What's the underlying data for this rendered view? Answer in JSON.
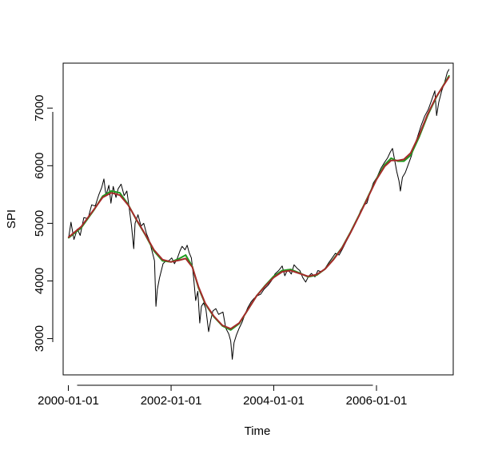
{
  "chart_data": {
    "type": "line",
    "title": "",
    "xlabel": "Time",
    "ylabel": "SPI",
    "xlim": [
      "1999-11-25",
      "2007-07-01"
    ],
    "ylim": [
      2370,
      7780
    ],
    "grid": false,
    "legend": "none",
    "x_ticks": [
      {
        "value": "2000-01-01",
        "label": "2000-01-01"
      },
      {
        "value": "2002-01-01",
        "label": "2002-01-01"
      },
      {
        "value": "2004-01-01",
        "label": "2004-01-01"
      },
      {
        "value": "2006-01-01",
        "label": "2006-01-01"
      }
    ],
    "y_ticks": [
      {
        "value": 3000,
        "label": "3000"
      },
      {
        "value": 4000,
        "label": "4000"
      },
      {
        "value": 5000,
        "label": "5000"
      },
      {
        "value": 6000,
        "label": "6000"
      },
      {
        "value": 7000,
        "label": "7000"
      }
    ],
    "series": [
      {
        "color": "#000000",
        "style": "raw",
        "points": [
          [
            "2000-01-03",
            4750
          ],
          [
            "2000-01-20",
            5020
          ],
          [
            "2000-02-10",
            4720
          ],
          [
            "2000-03-05",
            4900
          ],
          [
            "2000-03-25",
            4790
          ],
          [
            "2000-04-20",
            5100
          ],
          [
            "2000-05-20",
            5080
          ],
          [
            "2000-06-15",
            5320
          ],
          [
            "2000-07-10",
            5300
          ],
          [
            "2000-08-05",
            5500
          ],
          [
            "2000-08-25",
            5620
          ],
          [
            "2000-09-10",
            5770
          ],
          [
            "2000-09-25",
            5480
          ],
          [
            "2000-10-15",
            5660
          ],
          [
            "2000-10-30",
            5350
          ],
          [
            "2000-11-15",
            5640
          ],
          [
            "2000-12-05",
            5450
          ],
          [
            "2000-12-20",
            5600
          ],
          [
            "2001-01-10",
            5680
          ],
          [
            "2001-02-01",
            5480
          ],
          [
            "2001-02-20",
            5560
          ],
          [
            "2001-03-10",
            5250
          ],
          [
            "2001-03-25",
            4960
          ],
          [
            "2001-04-10",
            4560
          ],
          [
            "2001-04-20",
            5000
          ],
          [
            "2001-05-10",
            5150
          ],
          [
            "2001-06-01",
            4950
          ],
          [
            "2001-06-20",
            5000
          ],
          [
            "2001-07-10",
            4820
          ],
          [
            "2001-07-30",
            4700
          ],
          [
            "2001-08-15",
            4550
          ],
          [
            "2001-09-05",
            4350
          ],
          [
            "2001-09-15",
            3560
          ],
          [
            "2001-09-25",
            3850
          ],
          [
            "2001-10-10",
            4050
          ],
          [
            "2001-11-05",
            4300
          ],
          [
            "2001-11-25",
            4350
          ],
          [
            "2001-12-15",
            4350
          ],
          [
            "2002-01-05",
            4400
          ],
          [
            "2002-01-25",
            4300
          ],
          [
            "2002-02-15",
            4400
          ],
          [
            "2002-03-05",
            4520
          ],
          [
            "2002-03-20",
            4600
          ],
          [
            "2002-04-10",
            4540
          ],
          [
            "2002-04-25",
            4620
          ],
          [
            "2002-05-10",
            4490
          ],
          [
            "2002-05-25",
            4400
          ],
          [
            "2002-06-10",
            4060
          ],
          [
            "2002-06-25",
            3660
          ],
          [
            "2002-07-10",
            3820
          ],
          [
            "2002-07-24",
            3270
          ],
          [
            "2002-08-05",
            3560
          ],
          [
            "2002-08-20",
            3620
          ],
          [
            "2002-09-05",
            3520
          ],
          [
            "2002-09-25",
            3120
          ],
          [
            "2002-10-10",
            3320
          ],
          [
            "2002-10-25",
            3480
          ],
          [
            "2002-11-15",
            3520
          ],
          [
            "2002-12-05",
            3420
          ],
          [
            "2003-01-05",
            3460
          ],
          [
            "2003-01-25",
            3180
          ],
          [
            "2003-02-15",
            3080
          ],
          [
            "2003-03-01",
            2960
          ],
          [
            "2003-03-12",
            2640
          ],
          [
            "2003-03-25",
            2930
          ],
          [
            "2003-04-10",
            3060
          ],
          [
            "2003-04-30",
            3180
          ],
          [
            "2003-05-20",
            3280
          ],
          [
            "2003-06-10",
            3420
          ],
          [
            "2003-07-01",
            3540
          ],
          [
            "2003-07-25",
            3640
          ],
          [
            "2003-08-15",
            3700
          ],
          [
            "2003-09-05",
            3740
          ],
          [
            "2003-09-30",
            3770
          ],
          [
            "2003-10-25",
            3860
          ],
          [
            "2003-11-20",
            3920
          ],
          [
            "2003-12-15",
            4000
          ],
          [
            "2004-01-10",
            4120
          ],
          [
            "2004-02-05",
            4180
          ],
          [
            "2004-03-01",
            4260
          ],
          [
            "2004-03-20",
            4090
          ],
          [
            "2004-04-10",
            4200
          ],
          [
            "2004-05-05",
            4120
          ],
          [
            "2004-05-25",
            4280
          ],
          [
            "2004-06-15",
            4220
          ],
          [
            "2004-07-05",
            4180
          ],
          [
            "2004-07-25",
            4060
          ],
          [
            "2004-08-15",
            3980
          ],
          [
            "2004-09-05",
            4080
          ],
          [
            "2004-09-25",
            4130
          ],
          [
            "2004-10-20",
            4070
          ],
          [
            "2004-11-10",
            4180
          ],
          [
            "2004-12-05",
            4160
          ],
          [
            "2005-01-01",
            4220
          ],
          [
            "2005-01-25",
            4310
          ],
          [
            "2005-02-20",
            4400
          ],
          [
            "2005-03-15",
            4480
          ],
          [
            "2005-04-10",
            4450
          ],
          [
            "2005-05-05",
            4560
          ],
          [
            "2005-06-01",
            4690
          ],
          [
            "2005-06-25",
            4800
          ],
          [
            "2005-07-20",
            4920
          ],
          [
            "2005-08-15",
            5050
          ],
          [
            "2005-09-10",
            5220
          ],
          [
            "2005-10-05",
            5320
          ],
          [
            "2005-10-25",
            5350
          ],
          [
            "2005-11-15",
            5520
          ],
          [
            "2005-12-10",
            5700
          ],
          [
            "2006-01-05",
            5800
          ],
          [
            "2006-02-01",
            5950
          ],
          [
            "2006-02-25",
            6050
          ],
          [
            "2006-03-20",
            6130
          ],
          [
            "2006-04-10",
            6240
          ],
          [
            "2006-04-25",
            6300
          ],
          [
            "2006-05-10",
            6100
          ],
          [
            "2006-05-25",
            5900
          ],
          [
            "2006-06-10",
            5740
          ],
          [
            "2006-06-20",
            5560
          ],
          [
            "2006-07-05",
            5800
          ],
          [
            "2006-07-25",
            5880
          ],
          [
            "2006-08-15",
            6020
          ],
          [
            "2006-09-05",
            6160
          ],
          [
            "2006-09-25",
            6320
          ],
          [
            "2006-10-20",
            6500
          ],
          [
            "2006-11-15",
            6700
          ],
          [
            "2006-12-10",
            6860
          ],
          [
            "2007-01-05",
            6980
          ],
          [
            "2007-01-30",
            7150
          ],
          [
            "2007-02-20",
            7300
          ],
          [
            "2007-03-05",
            6870
          ],
          [
            "2007-03-20",
            7100
          ],
          [
            "2007-04-10",
            7300
          ],
          [
            "2007-04-30",
            7440
          ],
          [
            "2007-05-20",
            7620
          ],
          [
            "2007-06-01",
            7670
          ]
        ]
      },
      {
        "color": "#1e9a1e",
        "style": "smooth",
        "points": [
          [
            "2000-01-03",
            4750
          ],
          [
            "2000-04-01",
            4920
          ],
          [
            "2000-07-01",
            5230
          ],
          [
            "2000-09-01",
            5470
          ],
          [
            "2000-11-01",
            5560
          ],
          [
            "2001-01-01",
            5530
          ],
          [
            "2001-03-01",
            5330
          ],
          [
            "2001-05-01",
            5050
          ],
          [
            "2001-07-01",
            4800
          ],
          [
            "2001-09-01",
            4520
          ],
          [
            "2001-11-01",
            4350
          ],
          [
            "2002-01-01",
            4330
          ],
          [
            "2002-03-01",
            4390
          ],
          [
            "2002-04-15",
            4450
          ],
          [
            "2002-06-01",
            4250
          ],
          [
            "2002-07-15",
            3880
          ],
          [
            "2002-09-01",
            3600
          ],
          [
            "2002-11-01",
            3380
          ],
          [
            "2003-01-01",
            3220
          ],
          [
            "2003-03-01",
            3150
          ],
          [
            "2003-05-01",
            3260
          ],
          [
            "2003-07-01",
            3500
          ],
          [
            "2003-09-01",
            3740
          ],
          [
            "2003-11-01",
            3920
          ],
          [
            "2004-01-01",
            4080
          ],
          [
            "2004-03-01",
            4180
          ],
          [
            "2004-05-01",
            4200
          ],
          [
            "2004-07-01",
            4140
          ],
          [
            "2004-09-01",
            4070
          ],
          [
            "2004-11-01",
            4100
          ],
          [
            "2005-01-01",
            4210
          ],
          [
            "2005-03-01",
            4380
          ],
          [
            "2005-05-01",
            4580
          ],
          [
            "2005-07-01",
            4850
          ],
          [
            "2005-09-01",
            5150
          ],
          [
            "2005-11-01",
            5460
          ],
          [
            "2006-01-01",
            5770
          ],
          [
            "2006-03-01",
            6020
          ],
          [
            "2006-04-15",
            6130
          ],
          [
            "2006-06-01",
            6080
          ],
          [
            "2006-07-15",
            6080
          ],
          [
            "2006-09-01",
            6180
          ],
          [
            "2006-11-01",
            6500
          ],
          [
            "2007-01-01",
            6880
          ],
          [
            "2007-03-01",
            7180
          ],
          [
            "2007-06-01",
            7560
          ]
        ]
      },
      {
        "color": "#a52a2a",
        "style": "smooth",
        "points": [
          [
            "2000-01-03",
            4760
          ],
          [
            "2000-04-01",
            4940
          ],
          [
            "2000-07-01",
            5240
          ],
          [
            "2000-09-01",
            5450
          ],
          [
            "2000-11-01",
            5530
          ],
          [
            "2001-01-01",
            5490
          ],
          [
            "2001-03-01",
            5320
          ],
          [
            "2001-05-01",
            5060
          ],
          [
            "2001-07-01",
            4810
          ],
          [
            "2001-09-01",
            4540
          ],
          [
            "2001-11-01",
            4370
          ],
          [
            "2002-01-01",
            4330
          ],
          [
            "2002-03-01",
            4360
          ],
          [
            "2002-04-15",
            4390
          ],
          [
            "2002-06-01",
            4240
          ],
          [
            "2002-07-15",
            3900
          ],
          [
            "2002-09-01",
            3610
          ],
          [
            "2002-11-01",
            3390
          ],
          [
            "2003-01-01",
            3230
          ],
          [
            "2003-03-01",
            3170
          ],
          [
            "2003-05-01",
            3270
          ],
          [
            "2003-07-01",
            3500
          ],
          [
            "2003-09-01",
            3740
          ],
          [
            "2003-11-01",
            3910
          ],
          [
            "2004-01-01",
            4060
          ],
          [
            "2004-03-01",
            4160
          ],
          [
            "2004-05-01",
            4180
          ],
          [
            "2004-07-01",
            4130
          ],
          [
            "2004-09-01",
            4080
          ],
          [
            "2004-11-01",
            4110
          ],
          [
            "2005-01-01",
            4210
          ],
          [
            "2005-03-01",
            4370
          ],
          [
            "2005-05-01",
            4570
          ],
          [
            "2005-07-01",
            4840
          ],
          [
            "2005-09-01",
            5140
          ],
          [
            "2005-11-01",
            5450
          ],
          [
            "2006-01-01",
            5760
          ],
          [
            "2006-03-01",
            5990
          ],
          [
            "2006-04-15",
            6090
          ],
          [
            "2006-06-01",
            6090
          ],
          [
            "2006-07-15",
            6110
          ],
          [
            "2006-09-01",
            6220
          ],
          [
            "2006-11-01",
            6530
          ],
          [
            "2007-01-01",
            6900
          ],
          [
            "2007-03-01",
            7190
          ],
          [
            "2007-06-01",
            7540
          ]
        ]
      }
    ]
  }
}
